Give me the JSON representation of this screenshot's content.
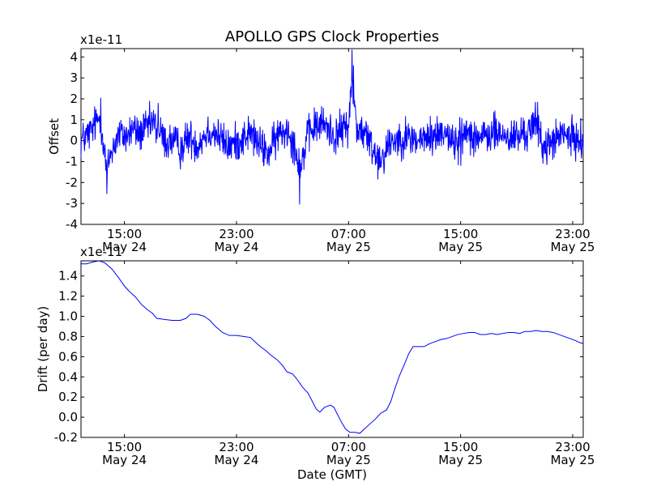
{
  "title": "APOLLO GPS Clock Properties",
  "xlabel": "Date (GMT)",
  "colors": {
    "series": "#0000ff",
    "axes": "#000000",
    "background": "#ffffff"
  },
  "x_ticks": [
    {
      "time": "15:00",
      "date": "May 24",
      "hours": 15
    },
    {
      "time": "23:00",
      "date": "May 24",
      "hours": 23
    },
    {
      "time": "07:00",
      "date": "May 25",
      "hours": 31
    },
    {
      "time": "15:00",
      "date": "May 25",
      "hours": 39
    },
    {
      "time": "23:00",
      "date": "May 25",
      "hours": 47
    }
  ],
  "chart_data": [
    {
      "type": "line",
      "name": "offset",
      "title": "APOLLO GPS Clock Properties",
      "ylabel": "Offset",
      "scale_label": "x1e-11",
      "xlim_hours": [
        11.9,
        47.75
      ],
      "ylim": [
        -4,
        4.4
      ],
      "yticks": [
        {
          "v": 4,
          "label": "4"
        },
        {
          "v": 3,
          "label": "3"
        },
        {
          "v": 2,
          "label": "2"
        },
        {
          "v": 1,
          "label": "1"
        },
        {
          "v": 0,
          "label": "0"
        },
        {
          "v": -1,
          "label": "-1"
        },
        {
          "v": -2,
          "label": "-2"
        },
        {
          "v": -3,
          "label": "-3"
        },
        {
          "v": -4,
          "label": "-4"
        }
      ],
      "noise_amplitude": 0.45,
      "baseline": [
        [
          11.9,
          0.0
        ],
        [
          12.6,
          0.4
        ],
        [
          13.0,
          0.9
        ],
        [
          13.3,
          1.2
        ],
        [
          13.6,
          -0.7
        ],
        [
          13.75,
          -1.6
        ],
        [
          14.0,
          -0.6
        ],
        [
          14.6,
          0.3
        ],
        [
          15.2,
          0.2
        ],
        [
          15.6,
          0.6
        ],
        [
          16.0,
          0.3
        ],
        [
          16.6,
          0.6
        ],
        [
          17.0,
          0.9
        ],
        [
          17.5,
          0.4
        ],
        [
          18.0,
          -0.1
        ],
        [
          18.5,
          0.0
        ],
        [
          19.0,
          -0.4
        ],
        [
          19.6,
          0.2
        ],
        [
          20.2,
          -0.2
        ],
        [
          21.0,
          0.5
        ],
        [
          21.6,
          0.3
        ],
        [
          22.4,
          -0.3
        ],
        [
          23.2,
          0.0
        ],
        [
          24.0,
          0.4
        ],
        [
          24.6,
          -0.2
        ],
        [
          25.3,
          -0.6
        ],
        [
          26.0,
          0.3
        ],
        [
          26.7,
          0.6
        ],
        [
          27.3,
          -0.6
        ],
        [
          27.6,
          -1.3
        ],
        [
          28.0,
          0.1
        ],
        [
          28.6,
          0.7
        ],
        [
          29.3,
          0.8
        ],
        [
          30.0,
          0.2
        ],
        [
          30.5,
          0.5
        ],
        [
          31.0,
          0.8
        ],
        [
          31.25,
          2.8
        ],
        [
          31.6,
          0.6
        ],
        [
          32.2,
          0.3
        ],
        [
          32.9,
          -0.6
        ],
        [
          33.4,
          -0.8
        ],
        [
          34.0,
          0.0
        ],
        [
          35.0,
          0.2
        ],
        [
          36.0,
          0.0
        ],
        [
          37.0,
          0.2
        ],
        [
          38.0,
          0.5
        ],
        [
          38.5,
          -0.2
        ],
        [
          39.5,
          0.5
        ],
        [
          40.5,
          0.1
        ],
        [
          41.5,
          0.4
        ],
        [
          42.5,
          0.1
        ],
        [
          43.5,
          0.3
        ],
        [
          44.4,
          0.8
        ],
        [
          45.0,
          -0.4
        ],
        [
          45.6,
          0.0
        ],
        [
          46.4,
          0.3
        ],
        [
          47.0,
          0.1
        ],
        [
          47.75,
          0.0
        ]
      ],
      "spikes": [
        [
          13.3,
          2.05
        ],
        [
          13.75,
          -2.55
        ],
        [
          17.4,
          1.8
        ],
        [
          27.5,
          -3.05
        ],
        [
          31.25,
          4.35
        ],
        [
          31.35,
          3.6
        ],
        [
          33.1,
          -1.85
        ],
        [
          39.0,
          -1.2
        ],
        [
          44.5,
          1.85
        ]
      ]
    },
    {
      "type": "line",
      "name": "drift",
      "ylabel": "Drift (per day)",
      "scale_label": "x1e-11",
      "xlim_hours": [
        11.9,
        47.75
      ],
      "ylim": [
        -0.2,
        1.55
      ],
      "yticks": [
        {
          "v": 1.4,
          "label": "1.4"
        },
        {
          "v": 1.2,
          "label": "1.2"
        },
        {
          "v": 1.0,
          "label": "1.0"
        },
        {
          "v": 0.8,
          "label": "0.8"
        },
        {
          "v": 0.6,
          "label": "0.6"
        },
        {
          "v": 0.4,
          "label": "0.4"
        },
        {
          "v": 0.2,
          "label": "0.2"
        },
        {
          "v": 0.0,
          "label": "0.0"
        },
        {
          "v": -0.2,
          "label": "-0.2"
        }
      ],
      "points": [
        [
          11.9,
          1.52
        ],
        [
          12.3,
          1.52
        ],
        [
          12.8,
          1.54
        ],
        [
          13.2,
          1.55
        ],
        [
          13.6,
          1.53
        ],
        [
          14.1,
          1.47
        ],
        [
          14.6,
          1.38
        ],
        [
          15.0,
          1.3
        ],
        [
          15.4,
          1.24
        ],
        [
          15.8,
          1.19
        ],
        [
          16.2,
          1.12
        ],
        [
          16.6,
          1.07
        ],
        [
          17.0,
          1.03
        ],
        [
          17.3,
          0.98
        ],
        [
          17.8,
          0.97
        ],
        [
          18.4,
          0.96
        ],
        [
          19.0,
          0.96
        ],
        [
          19.4,
          0.98
        ],
        [
          19.7,
          1.02
        ],
        [
          20.2,
          1.02
        ],
        [
          20.7,
          1.0
        ],
        [
          21.1,
          0.96
        ],
        [
          21.5,
          0.9
        ],
        [
          22.0,
          0.84
        ],
        [
          22.5,
          0.81
        ],
        [
          23.0,
          0.81
        ],
        [
          23.5,
          0.8
        ],
        [
          24.0,
          0.79
        ],
        [
          24.3,
          0.75
        ],
        [
          24.7,
          0.7
        ],
        [
          25.1,
          0.66
        ],
        [
          25.5,
          0.61
        ],
        [
          25.9,
          0.57
        ],
        [
          26.3,
          0.51
        ],
        [
          26.6,
          0.45
        ],
        [
          27.0,
          0.43
        ],
        [
          27.3,
          0.38
        ],
        [
          27.7,
          0.3
        ],
        [
          28.1,
          0.24
        ],
        [
          28.4,
          0.16
        ],
        [
          28.7,
          0.08
        ],
        [
          28.95,
          0.05
        ],
        [
          29.3,
          0.1
        ],
        [
          29.7,
          0.12
        ],
        [
          29.95,
          0.1
        ],
        [
          30.2,
          0.03
        ],
        [
          30.5,
          -0.05
        ],
        [
          30.8,
          -0.12
        ],
        [
          31.1,
          -0.15
        ],
        [
          31.5,
          -0.15
        ],
        [
          31.8,
          -0.16
        ],
        [
          32.1,
          -0.12
        ],
        [
          32.5,
          -0.07
        ],
        [
          32.9,
          -0.02
        ],
        [
          33.3,
          0.04
        ],
        [
          33.7,
          0.07
        ],
        [
          34.0,
          0.15
        ],
        [
          34.3,
          0.28
        ],
        [
          34.6,
          0.4
        ],
        [
          35.0,
          0.53
        ],
        [
          35.3,
          0.63
        ],
        [
          35.6,
          0.7
        ],
        [
          36.0,
          0.7
        ],
        [
          36.4,
          0.7
        ],
        [
          36.8,
          0.73
        ],
        [
          37.2,
          0.75
        ],
        [
          37.6,
          0.77
        ],
        [
          38.0,
          0.78
        ],
        [
          38.4,
          0.8
        ],
        [
          38.8,
          0.82
        ],
        [
          39.2,
          0.83
        ],
        [
          39.6,
          0.84
        ],
        [
          40.0,
          0.84
        ],
        [
          40.4,
          0.82
        ],
        [
          40.8,
          0.82
        ],
        [
          41.2,
          0.83
        ],
        [
          41.6,
          0.82
        ],
        [
          42.0,
          0.83
        ],
        [
          42.4,
          0.84
        ],
        [
          42.8,
          0.84
        ],
        [
          43.2,
          0.83
        ],
        [
          43.6,
          0.85
        ],
        [
          44.0,
          0.85
        ],
        [
          44.4,
          0.86
        ],
        [
          44.8,
          0.85
        ],
        [
          45.2,
          0.85
        ],
        [
          45.6,
          0.84
        ],
        [
          46.0,
          0.82
        ],
        [
          46.4,
          0.8
        ],
        [
          46.8,
          0.78
        ],
        [
          47.2,
          0.76
        ],
        [
          47.5,
          0.74
        ],
        [
          47.75,
          0.73
        ]
      ]
    }
  ]
}
